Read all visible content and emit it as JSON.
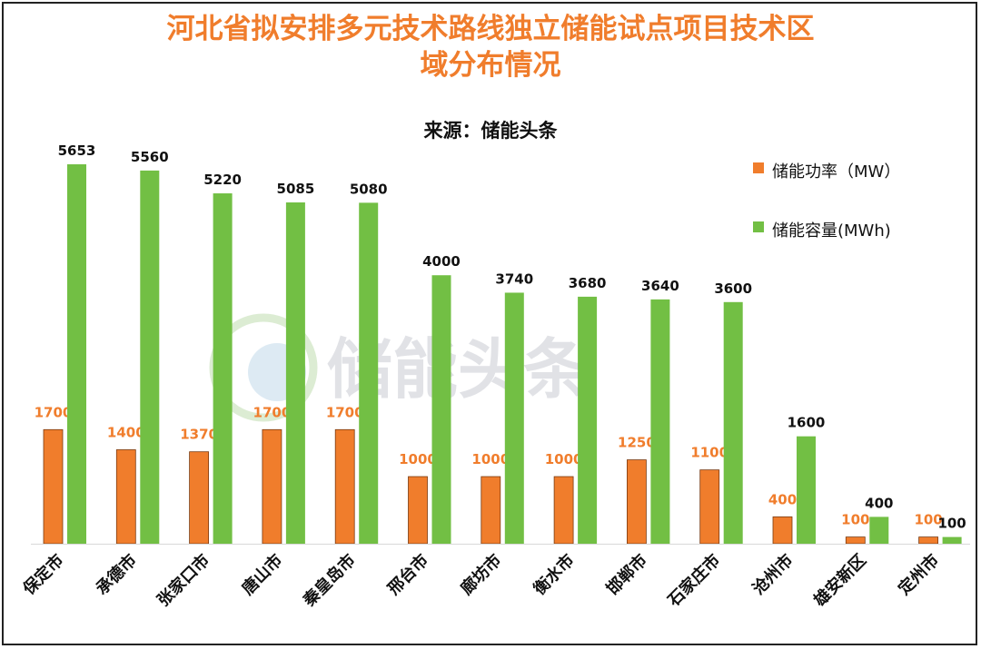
{
  "title_line1": "河北省拟安排多元技术路线独立储能试点项目技术区",
  "title_line2": "域分布情况",
  "subtitle": "来源：储能头条",
  "watermark": "储能头条",
  "colors": {
    "power": "#f07d2c",
    "capacity": "#72bf44",
    "title": "#f07d2c"
  },
  "chart_data": {
    "type": "bar",
    "categories": [
      "保定市",
      "承德市",
      "张家口市",
      "唐山市",
      "秦皇岛市",
      "邢台市",
      "廊坊市",
      "衡水市",
      "邯郸市",
      "石家庄市",
      "沧州市",
      "雄安新区",
      "定州市"
    ],
    "series": [
      {
        "name": "储能功率（MW）",
        "values": [
          1700,
          1400,
          1370,
          1700,
          1700,
          1000,
          1000,
          1000,
          1250,
          1100,
          400,
          100,
          100
        ]
      },
      {
        "name": "储能容量(MWh)",
        "values": [
          5653,
          5560,
          5220,
          5085,
          5080,
          4000,
          3740,
          3680,
          3640,
          3600,
          1600,
          400,
          100
        ]
      }
    ],
    "ylim": [
      0,
      5653
    ],
    "grid": false,
    "legend_position": "top-right",
    "data_labels": true
  }
}
